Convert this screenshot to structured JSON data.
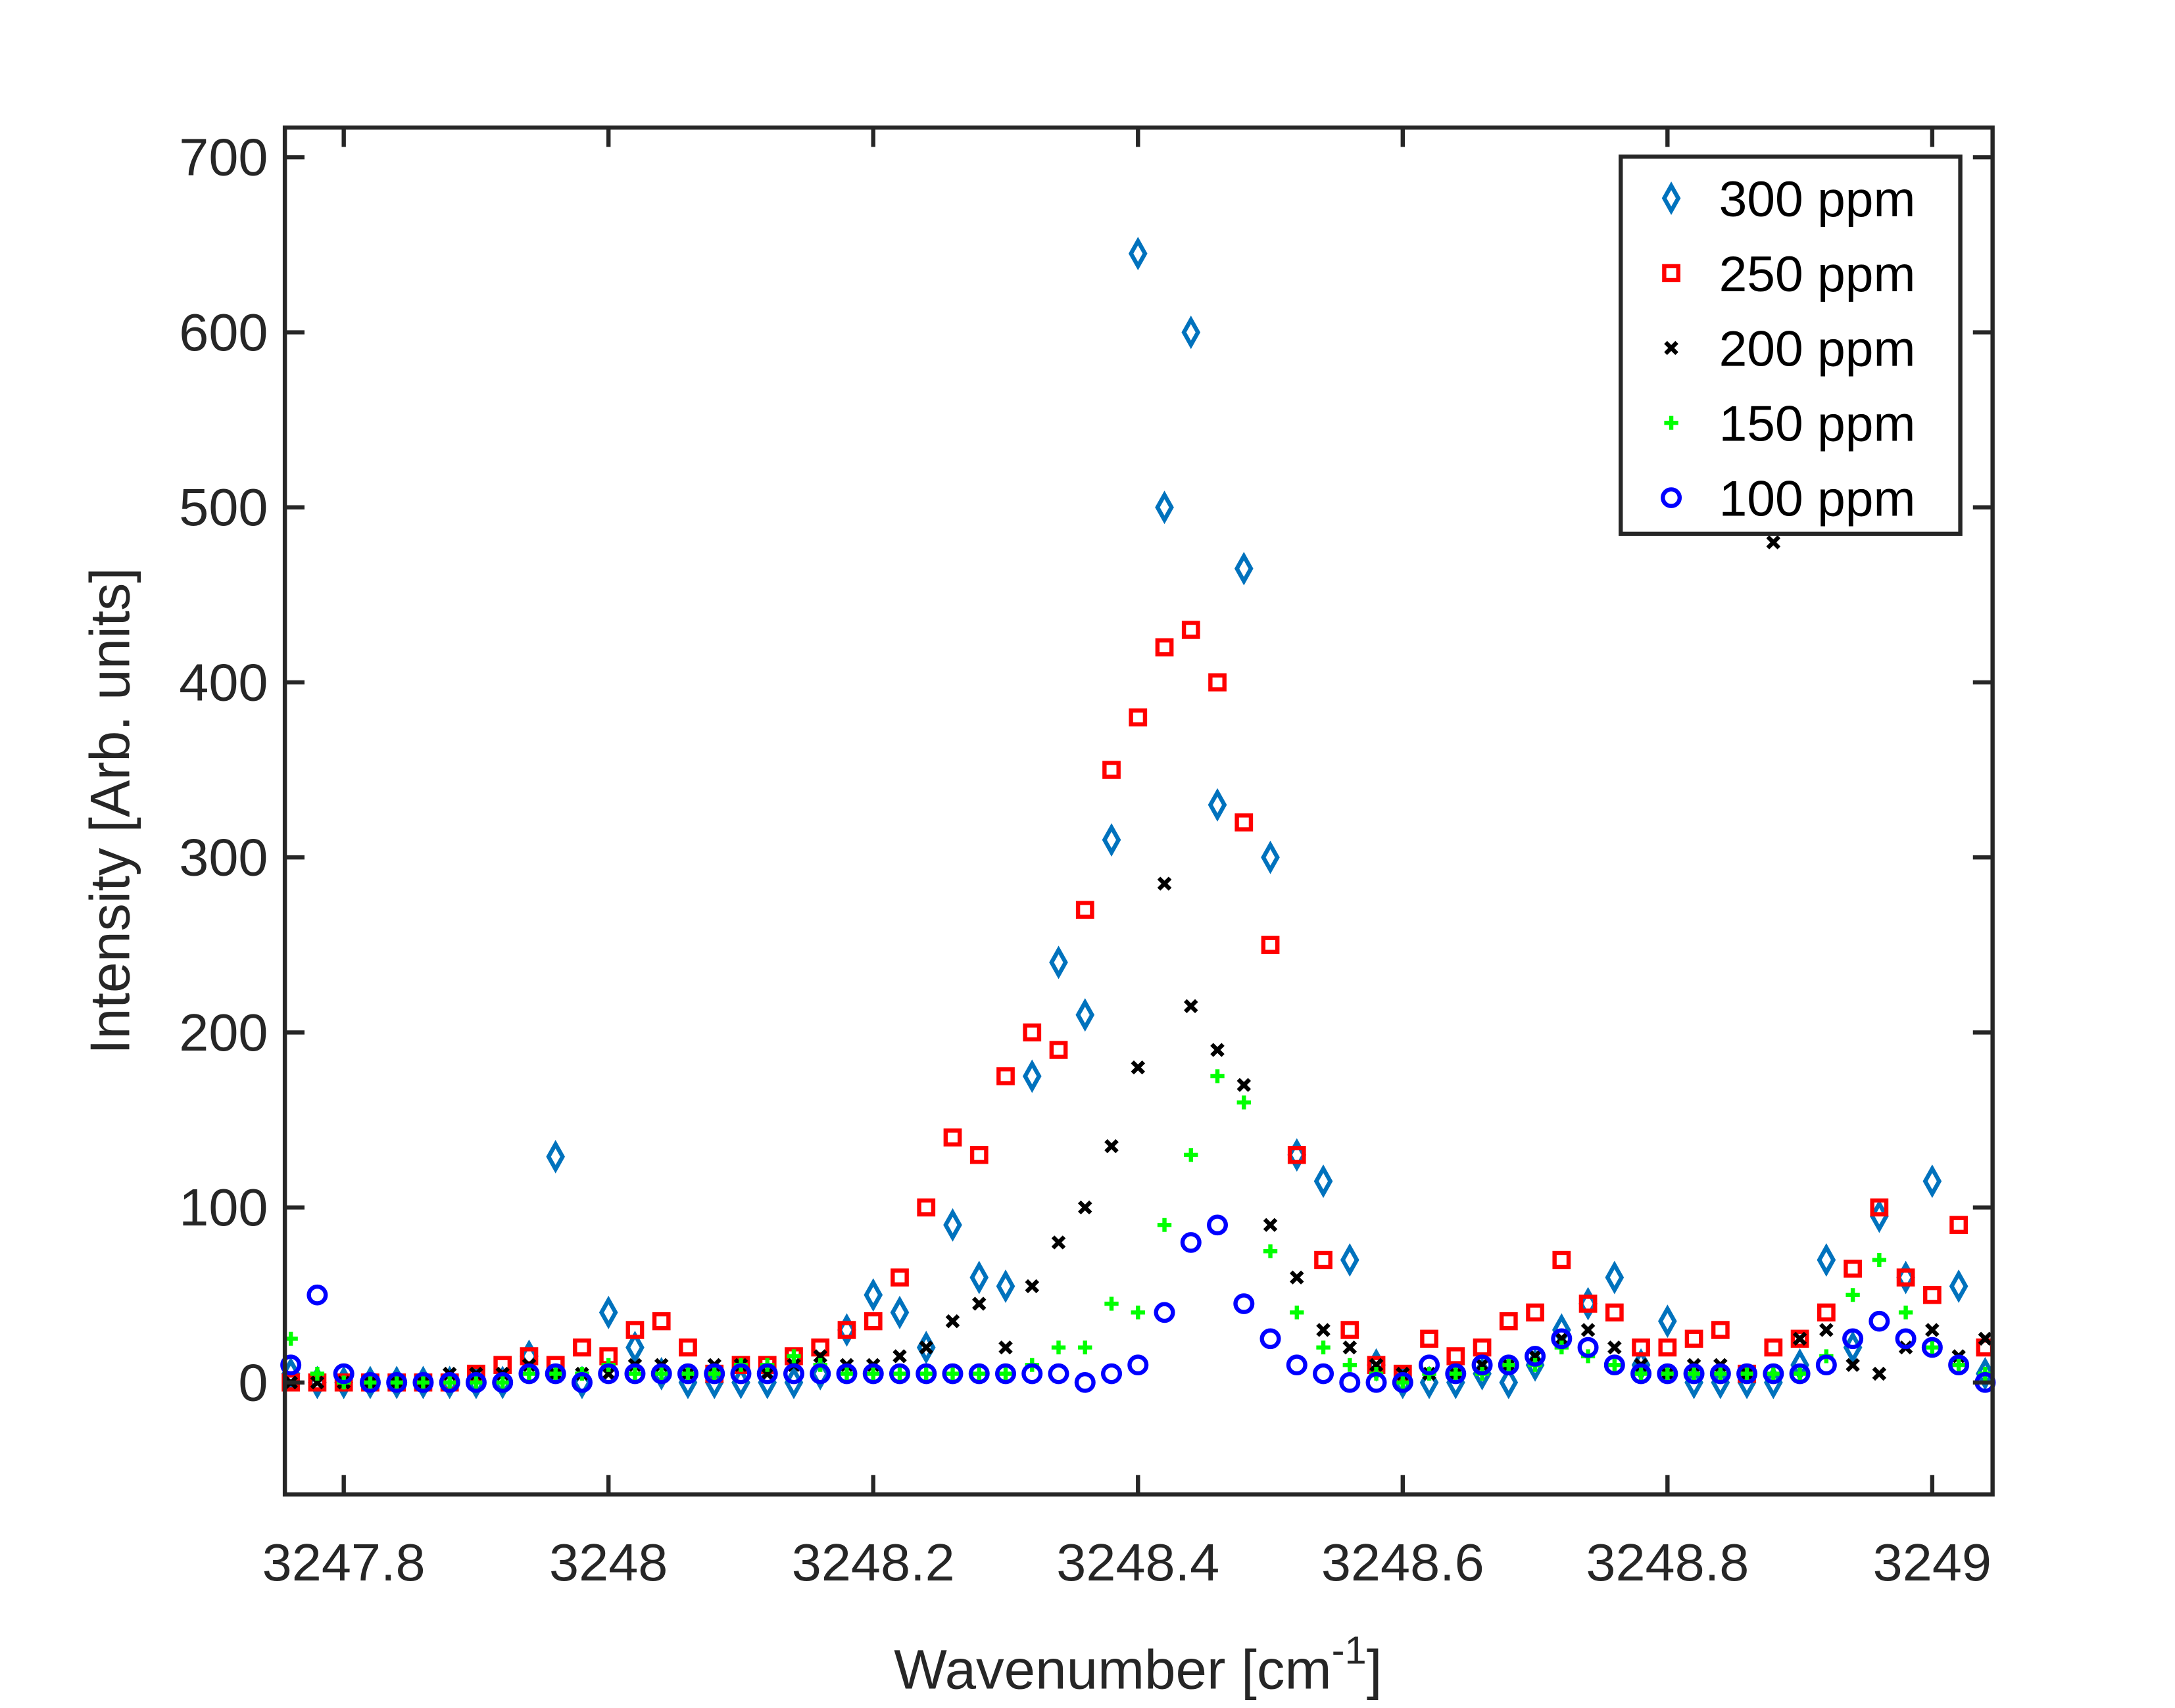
{
  "chart_data": {
    "type": "scatter",
    "xlabel": {
      "text": "Wavenumber [cm",
      "superscript": "-1",
      "suffix": "]"
    },
    "ylabel": "Intensity [Arb. units]",
    "x": [
      3247.76,
      3247.78,
      3247.8,
      3247.82,
      3247.84,
      3247.86,
      3247.88,
      3247.9,
      3247.92,
      3247.94,
      3247.96,
      3247.98,
      3248.0,
      3248.02,
      3248.04,
      3248.06,
      3248.08,
      3248.1,
      3248.12,
      3248.14,
      3248.16,
      3248.18,
      3248.2,
      3248.22,
      3248.24,
      3248.26,
      3248.28,
      3248.3,
      3248.32,
      3248.34,
      3248.36,
      3248.38,
      3248.4,
      3248.42,
      3248.44,
      3248.46,
      3248.48,
      3248.5,
      3248.52,
      3248.54,
      3248.56,
      3248.58,
      3248.6,
      3248.62,
      3248.64,
      3248.66,
      3248.68,
      3248.7,
      3248.72,
      3248.74,
      3248.76,
      3248.78,
      3248.8,
      3248.82,
      3248.84,
      3248.86,
      3248.88,
      3248.9,
      3248.92,
      3248.94,
      3248.96,
      3248.98,
      3249.0,
      3249.02,
      3249.04
    ],
    "series": [
      {
        "name": "300 ppm",
        "color": "#0072bd",
        "marker": "diamond",
        "values": [
          5,
          0,
          0,
          0,
          0,
          0,
          0,
          0,
          0,
          15,
          129,
          0,
          40,
          20,
          5,
          0,
          0,
          0,
          0,
          0,
          5,
          30,
          50,
          40,
          20,
          90,
          60,
          55,
          175,
          240,
          210,
          310,
          645,
          500,
          600,
          330,
          465,
          300,
          130,
          115,
          70,
          10,
          0,
          0,
          0,
          5,
          0,
          10,
          30,
          45,
          60,
          10,
          35,
          0,
          0,
          0,
          0,
          10,
          70,
          20,
          95,
          60,
          115,
          55,
          5
        ]
      },
      {
        "name": "250 ppm",
        "color": "#ff0000",
        "marker": "square",
        "values": [
          0,
          0,
          0,
          0,
          0,
          0,
          0,
          5,
          10,
          15,
          10,
          20,
          15,
          30,
          35,
          20,
          5,
          10,
          10,
          15,
          20,
          30,
          35,
          60,
          100,
          140,
          130,
          175,
          200,
          190,
          270,
          350,
          380,
          420,
          430,
          400,
          320,
          250,
          130,
          70,
          30,
          10,
          5,
          25,
          15,
          20,
          35,
          40,
          70,
          45,
          40,
          20,
          20,
          25,
          30,
          5,
          20,
          25,
          40,
          65,
          100,
          60,
          50,
          90,
          20
        ]
      },
      {
        "name": "200 ppm",
        "color": "#000000",
        "marker": "x",
        "values": [
          0,
          0,
          0,
          0,
          0,
          0,
          5,
          5,
          5,
          10,
          5,
          5,
          5,
          10,
          10,
          5,
          10,
          10,
          5,
          10,
          15,
          10,
          10,
          15,
          20,
          35,
          45,
          20,
          55,
          80,
          100,
          135,
          180,
          285,
          215,
          190,
          170,
          90,
          60,
          30,
          20,
          10,
          5,
          5,
          5,
          10,
          10,
          15,
          25,
          30,
          20,
          10,
          5,
          10,
          10,
          5,
          480,
          25,
          30,
          10,
          5,
          20,
          30,
          15,
          25
        ]
      },
      {
        "name": "150 ppm",
        "color": "#00ff00",
        "marker": "plus",
        "values": [
          25,
          5,
          0,
          0,
          0,
          0,
          0,
          0,
          0,
          5,
          5,
          5,
          10,
          5,
          5,
          5,
          5,
          10,
          10,
          15,
          10,
          5,
          5,
          5,
          5,
          5,
          5,
          5,
          10,
          20,
          20,
          45,
          40,
          90,
          130,
          175,
          160,
          75,
          40,
          20,
          10,
          5,
          0,
          5,
          5,
          5,
          10,
          10,
          20,
          15,
          10,
          5,
          5,
          5,
          5,
          5,
          5,
          5,
          15,
          50,
          70,
          40,
          20,
          10,
          5
        ]
      },
      {
        "name": "100 ppm",
        "color": "#0000ff",
        "marker": "circle",
        "values": [
          10,
          50,
          5,
          0,
          0,
          0,
          0,
          0,
          0,
          5,
          5,
          0,
          5,
          5,
          5,
          5,
          5,
          5,
          5,
          5,
          5,
          5,
          5,
          5,
          5,
          5,
          5,
          5,
          5,
          5,
          0,
          5,
          10,
          40,
          80,
          90,
          45,
          25,
          10,
          5,
          0,
          0,
          0,
          10,
          5,
          10,
          10,
          15,
          25,
          20,
          10,
          5,
          5,
          5,
          5,
          5,
          5,
          5,
          10,
          25,
          35,
          25,
          20,
          10,
          0
        ]
      }
    ],
    "xlim": [
      3247.7555,
      3249.0456
    ],
    "xticks": [
      3247.8,
      3248,
      3248.2,
      3248.4,
      3248.6,
      3248.8,
      3249
    ],
    "ylim": [
      -64,
      717
    ],
    "yticks": [
      0,
      100,
      200,
      300,
      400,
      500,
      600,
      700
    ],
    "legend": "upper right",
    "grid": false
  }
}
